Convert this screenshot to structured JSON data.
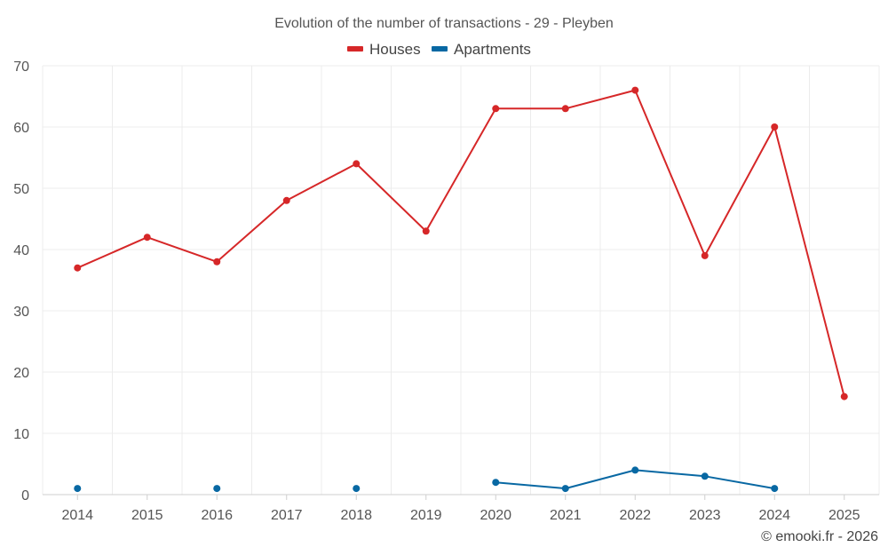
{
  "chart_data": {
    "type": "line",
    "title": "Evolution of the number of transactions - 29 - Pleyben",
    "categories": [
      "2014",
      "2015",
      "2016",
      "2017",
      "2018",
      "2019",
      "2020",
      "2021",
      "2022",
      "2023",
      "2024",
      "2025"
    ],
    "series": [
      {
        "name": "Houses",
        "color": "#d62728",
        "values": [
          37,
          42,
          38,
          48,
          54,
          43,
          63,
          63,
          66,
          39,
          60,
          16
        ]
      },
      {
        "name": "Apartments",
        "color": "#0868a3",
        "values": [
          1,
          null,
          1,
          null,
          1,
          null,
          2,
          1,
          4,
          3,
          1,
          null
        ]
      }
    ],
    "ylim": [
      0,
      70
    ],
    "yticks": [
      0,
      10,
      20,
      30,
      40,
      50,
      60,
      70
    ],
    "xlabel": "",
    "ylabel": "",
    "grid": true,
    "legend_position": "top-center"
  },
  "credit": "© emooki.fr - 2026"
}
